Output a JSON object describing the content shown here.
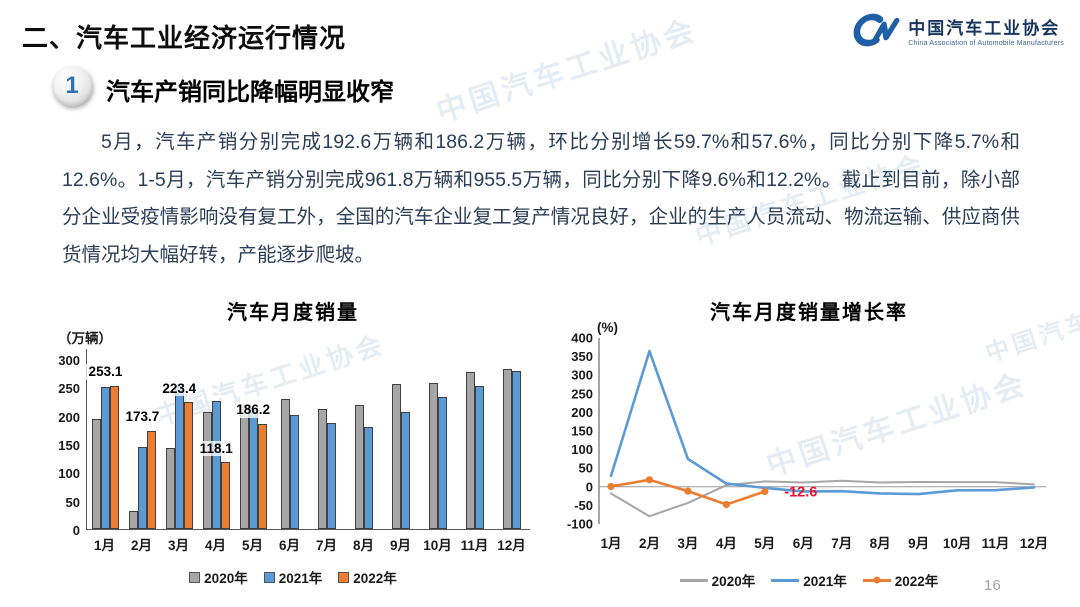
{
  "header": {
    "title": "二、汽车工业经济运行情况",
    "logo": {
      "name_cn": "中国汽车工业协会",
      "name_en": "China Association of Automobile Manufacturers"
    }
  },
  "section": {
    "number": "1",
    "title": "汽车产销同比降幅明显收窄",
    "paragraph": "5月，汽车产销分别完成192.6万辆和186.2万辆，环比分别增长59.7%和57.6%，同比分别下降5.7%和12.6%。1-5月，汽车产销分别完成961.8万辆和955.5万辆，同比分别下降9.6%和12.2%。截止到目前，除小部分企业受疫情影响没有复工外，全国的汽车企业复工复产情况良好，企业的生产人员流动、物流运输、供应商供货情况均大幅好转，产能逐步爬坡。"
  },
  "watermark": {
    "text": "中国汽车工业协会"
  },
  "footer": {
    "page_number": "16"
  },
  "colors": {
    "gray_series": "#a6a6a6",
    "blue_series": "#5b9bd5",
    "orange_series": "#ed7d31",
    "annotation_red": "#e8112d",
    "logo_blue": "#1f5fa8"
  },
  "chart_data": [
    {
      "type": "bar",
      "title": "汽车月度销量",
      "unit_label": "（万辆）",
      "categories": [
        "1月",
        "2月",
        "3月",
        "4月",
        "5月",
        "6月",
        "7月",
        "8月",
        "9月",
        "10月",
        "11月",
        "12月"
      ],
      "series": [
        {
          "name": "2020年",
          "color": "#a6a6a6",
          "values": [
            194.1,
            31.0,
            143.0,
            207.0,
            219.4,
            230.0,
            211.2,
            218.6,
            256.5,
            257.3,
            277.0,
            283.1
          ]
        },
        {
          "name": "2021年",
          "color": "#5b9bd5",
          "values": [
            250.3,
            145.5,
            252.6,
            225.2,
            212.8,
            201.5,
            186.4,
            179.9,
            206.7,
            233.3,
            252.2,
            278.6
          ]
        },
        {
          "name": "2022年",
          "color": "#ed7d31",
          "values": [
            253.1,
            173.7,
            223.4,
            118.1,
            186.2,
            null,
            null,
            null,
            null,
            null,
            null,
            null
          ]
        }
      ],
      "data_labels": {
        "series": "2022年",
        "values": [
          "253.1",
          "173.7",
          "223.4",
          "118.1",
          "186.2"
        ]
      },
      "ylim": [
        0,
        300
      ],
      "ytick_step": 50,
      "grid": false,
      "legend_position": "bottom"
    },
    {
      "type": "line",
      "title": "汽车月度销量增长率",
      "unit_label": "(%)",
      "categories": [
        "1月",
        "2月",
        "3月",
        "4月",
        "5月",
        "6月",
        "7月",
        "8月",
        "9月",
        "10月",
        "11月",
        "12月"
      ],
      "series": [
        {
          "name": "2020年",
          "color": "#a6a6a6",
          "markers": false,
          "values": [
            -18.0,
            -79.1,
            -43.3,
            4.4,
            14.5,
            11.6,
            16.4,
            11.6,
            12.8,
            12.5,
            12.6,
            6.4
          ]
        },
        {
          "name": "2021年",
          "color": "#5b9bd5",
          "markers": false,
          "values": [
            29.5,
            364.8,
            74.9,
            8.6,
            -3.1,
            -12.4,
            -11.9,
            -17.8,
            -19.6,
            -9.4,
            -9.1,
            -1.6
          ]
        },
        {
          "name": "2022年",
          "color": "#ed7d31",
          "markers": true,
          "values": [
            0.9,
            18.7,
            -11.7,
            -47.6,
            -12.6
          ]
        }
      ],
      "annotation": {
        "text": "-12.6",
        "color": "#e8112d",
        "month_index": 4,
        "value": -12.6
      },
      "ylim": [
        -100,
        400
      ],
      "ytick_step": 50,
      "grid": false,
      "legend_position": "bottom"
    }
  ]
}
